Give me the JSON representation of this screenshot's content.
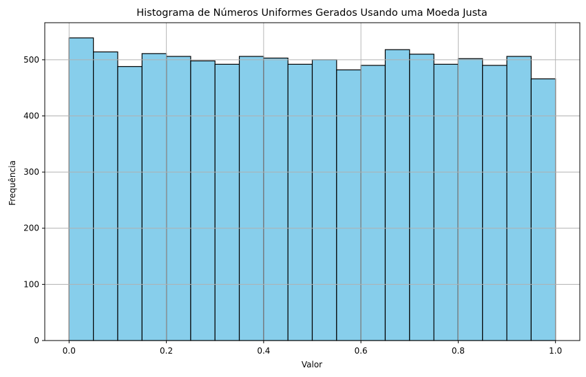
{
  "chart_data": {
    "type": "bar",
    "title": "Histograma de Números Uniformes Gerados Usando uma Moeda Justa",
    "xlabel": "Valor",
    "ylabel": "Frequência",
    "xlim": [
      -0.05,
      1.05
    ],
    "ylim": [
      0,
      566
    ],
    "grid": true,
    "bin_edges": [
      0.0,
      0.05,
      0.1,
      0.15,
      0.2,
      0.25,
      0.3,
      0.35,
      0.4,
      0.45,
      0.5,
      0.55,
      0.6,
      0.65,
      0.7,
      0.75,
      0.8,
      0.85,
      0.9,
      0.95,
      1.0
    ],
    "values": [
      539,
      514,
      488,
      511,
      506,
      498,
      492,
      506,
      503,
      492,
      500,
      482,
      490,
      518,
      510,
      492,
      502,
      490,
      506,
      466
    ],
    "xticks": [
      0.0,
      0.2,
      0.4,
      0.6,
      0.8,
      1.0
    ],
    "xtick_labels": [
      "0.0",
      "0.2",
      "0.4",
      "0.6",
      "0.8",
      "1.0"
    ],
    "yticks": [
      0,
      100,
      200,
      300,
      400,
      500
    ],
    "ytick_labels": [
      "0",
      "100",
      "200",
      "300",
      "400",
      "500"
    ],
    "bar_color": "#87ceeb",
    "edge_color": "#000000",
    "grid_color": "#b0b0b0"
  }
}
